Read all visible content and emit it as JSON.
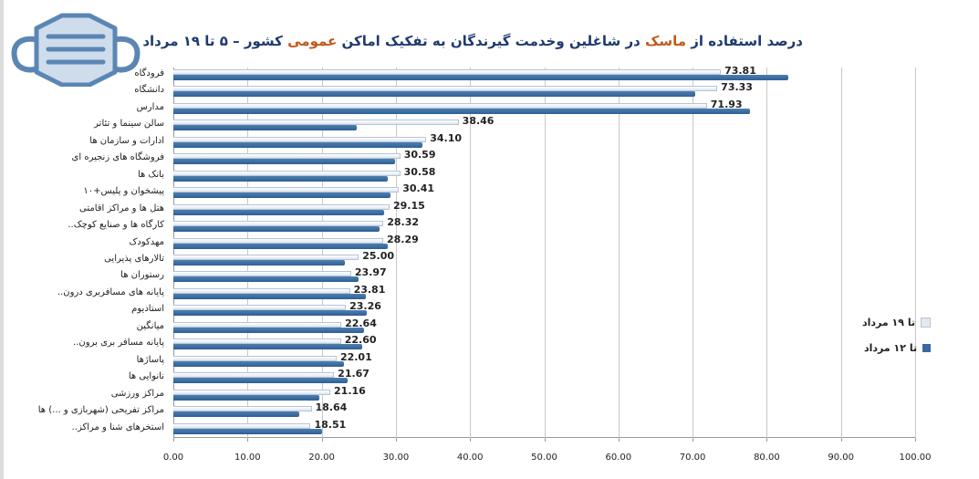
{
  "title": {
    "part1": "درصد استفاده از ",
    "part2": "ماسک",
    "part3": " در شاغلین وخدمت گیرندگان به تفکیک اماکن ",
    "part4": "عمومی",
    "part5": " کشور  – ۵ تا ۱۹ مرداد"
  },
  "legend": [
    {
      "label": "تا ۱۹ مرداد",
      "color": "#e4e9f0"
    },
    {
      "label": "تا ۱۲ مرداد",
      "color": "#3a6a9e"
    }
  ],
  "x_ticks": [
    "0.00",
    "10.00",
    "20.00",
    "30.00",
    "40.00",
    "50.00",
    "60.00",
    "70.00",
    "80.00",
    "90.00",
    "100.00"
  ],
  "chart_data": {
    "type": "bar",
    "orientation": "horizontal",
    "title": "درصد استفاده از ماسک در شاغلین وخدمت گیرندگان به تفکیک اماکن عمومی کشور – ۵ تا ۱۹ مرداد",
    "xlabel": "",
    "ylabel": "",
    "xlim": [
      0,
      100
    ],
    "grid": true,
    "legend_position": "right",
    "categories": [
      "فرودگاه",
      "دانشگاه",
      "مدارس",
      "سالن سینما و تئاتر",
      "ادارات و سازمان ها",
      "فروشگاه های زنجیره ای",
      "بانک ها",
      "پیشخوان و پلیس+۱۰",
      "هتل ها و مراکز اقامتی",
      "کارگاه ها و صنایع کوچک..",
      "مهدکودک",
      "تالارهای پذیرایی",
      "رستوران ها",
      "پایانه های مسافربری درون..",
      "استادیوم",
      "میانگین",
      "پایانه مسافر بری برون..",
      "پاساژها",
      "نانوایی ها",
      "مراکز ورزشی",
      "مراکز تفریحی (شهربازی و ...) ها",
      "استخرهای شنا و مراکز.."
    ],
    "series": [
      {
        "name": "تا ۱۹ مرداد",
        "values": [
          73.81,
          73.33,
          71.93,
          38.46,
          34.1,
          30.59,
          30.58,
          30.41,
          29.15,
          28.32,
          28.29,
          25.0,
          23.97,
          23.81,
          23.26,
          22.64,
          22.6,
          22.01,
          21.67,
          21.16,
          18.64,
          18.51
        ],
        "labels": [
          "73.81",
          "73.33",
          "71.93",
          "38.46",
          "34.10",
          "30.59",
          "30.58",
          "30.41",
          "29.15",
          "28.32",
          "28.29",
          "25.00",
          "23.97",
          "23.81",
          "23.26",
          "22.64",
          "22.60",
          "22.01",
          "21.67",
          "21.16",
          "18.64",
          "18.51"
        ]
      },
      {
        "name": "تا ۱۲ مرداد",
        "values": [
          82.9,
          70.4,
          77.7,
          24.7,
          33.6,
          29.9,
          28.9,
          29.3,
          28.4,
          27.8,
          28.9,
          23.1,
          25.0,
          25.9,
          26.1,
          25.7,
          25.5,
          23.0,
          23.5,
          19.7,
          17.0,
          20.0
        ]
      }
    ]
  }
}
